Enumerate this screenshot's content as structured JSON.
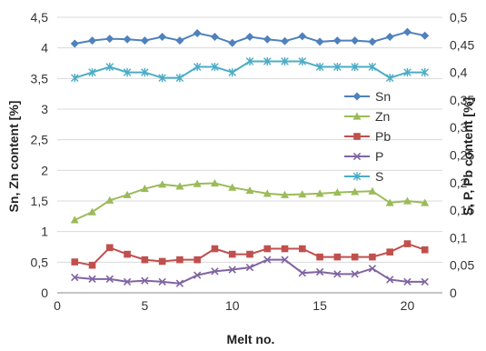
{
  "chart_data": {
    "type": "line",
    "xlabel": "Melt no.",
    "ylabel_left": "Sn, Zn content [%]",
    "ylabel_right": "S, P, Pb content [%]",
    "x": [
      1,
      2,
      3,
      4,
      5,
      6,
      7,
      8,
      9,
      10,
      11,
      12,
      13,
      14,
      15,
      16,
      17,
      18,
      19,
      20,
      21
    ],
    "xlim": [
      0,
      22
    ],
    "x_ticks": [
      0,
      5,
      10,
      15,
      20
    ],
    "x_tick_labels": [
      "0",
      "5",
      "10",
      "15",
      "20"
    ],
    "ylim_left": [
      0,
      4.5
    ],
    "y_ticks_left": [
      0,
      0.5,
      1,
      1.5,
      2,
      2.5,
      3,
      3.5,
      4,
      4.5
    ],
    "y_tick_labels_left": [
      "0",
      "0,5",
      "1",
      "1,5",
      "2",
      "2,5",
      "3",
      "3,5",
      "4",
      "4,5"
    ],
    "ylim_right": [
      0,
      0.5
    ],
    "y_ticks_right": [
      0,
      0.05,
      0.1,
      0.15,
      0.2,
      0.25,
      0.3,
      0.35,
      0.4,
      0.45,
      0.5
    ],
    "y_tick_labels_right": [
      "0",
      "0,05",
      "0,1",
      "0,15",
      "0,2",
      "0,25",
      "0,3",
      "0,35",
      "0,4",
      "0,45",
      "0,5"
    ],
    "grid": "horizontal",
    "legend_position": "right",
    "series": [
      {
        "name": "Sn",
        "axis": "left",
        "color": "#4F81BD",
        "marker": "diamond",
        "values": [
          4.07,
          4.12,
          4.15,
          4.14,
          4.12,
          4.18,
          4.12,
          4.24,
          4.18,
          4.08,
          4.18,
          4.14,
          4.11,
          4.19,
          4.1,
          4.12,
          4.12,
          4.1,
          4.18,
          4.26,
          4.2
        ]
      },
      {
        "name": "Zn",
        "axis": "left",
        "color": "#9BBB59",
        "marker": "triangle",
        "values": [
          1.19,
          1.32,
          1.51,
          1.6,
          1.7,
          1.77,
          1.74,
          1.78,
          1.79,
          1.72,
          1.67,
          1.62,
          1.6,
          1.61,
          1.62,
          1.64,
          1.65,
          1.66,
          1.47,
          1.5,
          1.47
        ]
      },
      {
        "name": "Pb",
        "axis": "right",
        "color": "#C0504D",
        "marker": "square",
        "values": [
          0.056,
          0.05,
          0.082,
          0.07,
          0.06,
          0.057,
          0.06,
          0.06,
          0.08,
          0.07,
          0.07,
          0.08,
          0.08,
          0.08,
          0.065,
          0.065,
          0.065,
          0.065,
          0.074,
          0.089,
          0.078
        ]
      },
      {
        "name": "P",
        "axis": "right",
        "color": "#8064A2",
        "marker": "x",
        "values": [
          0.028,
          0.025,
          0.025,
          0.02,
          0.022,
          0.02,
          0.017,
          0.032,
          0.039,
          0.042,
          0.046,
          0.06,
          0.06,
          0.036,
          0.038,
          0.034,
          0.034,
          0.044,
          0.024,
          0.02,
          0.02
        ]
      },
      {
        "name": "S",
        "axis": "right",
        "color": "#4BACC6",
        "marker": "star",
        "values": [
          0.39,
          0.4,
          0.41,
          0.4,
          0.4,
          0.39,
          0.39,
          0.41,
          0.41,
          0.4,
          0.42,
          0.42,
          0.42,
          0.42,
          0.41,
          0.41,
          0.41,
          0.41,
          0.39,
          0.4,
          0.4
        ]
      }
    ]
  }
}
